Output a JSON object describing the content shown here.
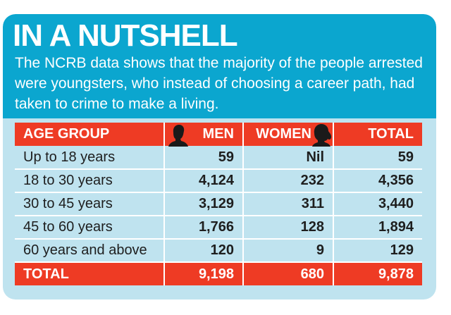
{
  "header": {
    "title": "IN A NUTSHELL",
    "summary": "The NCRB data shows that the majority of the people arrested were youngsters, who instead of choosing a career path, had taken to crime to make a living."
  },
  "table": {
    "columns": [
      "AGE GROUP",
      "MEN",
      "WOMEN",
      "TOTAL"
    ],
    "rows": [
      {
        "age_group": "Up to 18 years",
        "men": "59",
        "women": "Nil",
        "total": "59"
      },
      {
        "age_group": "18 to 30 years",
        "men": "4,124",
        "women": "232",
        "total": "4,356"
      },
      {
        "age_group": "30 to 45 years",
        "men": "3,129",
        "women": "311",
        "total": "3,440"
      },
      {
        "age_group": "45 to 60 years",
        "men": "1,766",
        "women": "128",
        "total": "1,894"
      },
      {
        "age_group": "60 years and above",
        "men": "120",
        "women": "9",
        "total": "129"
      }
    ],
    "total_row": {
      "label": "TOTAL",
      "men": "9,198",
      "women": "680",
      "total": "9,878"
    }
  },
  "icons": {
    "men_column": "man-silhouette-icon",
    "women_column": "woman-silhouette-icon"
  },
  "colors": {
    "header_bg": "#0ba6cf",
    "card_bg": "#bfe3ef",
    "table_header_bg": "#ee3b24"
  }
}
